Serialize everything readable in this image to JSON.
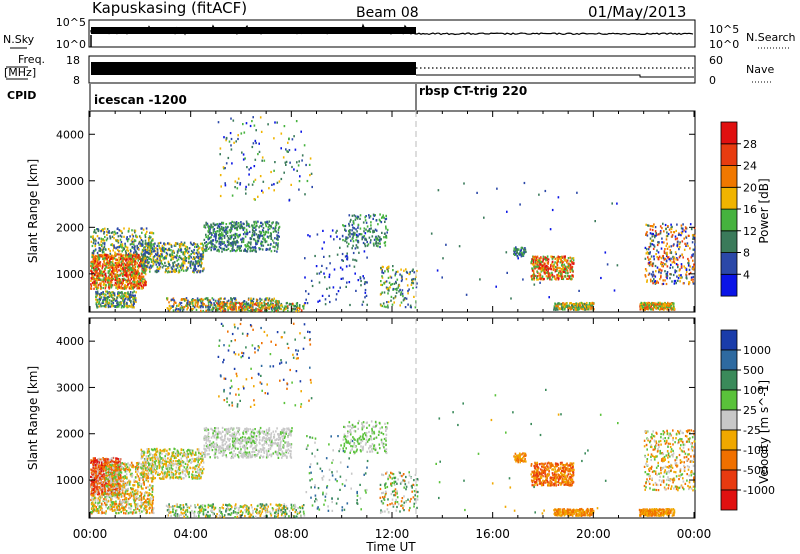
{
  "header": {
    "station": "Kapuskasing (fitACF)",
    "beam": "Beam 08",
    "date": "01/May/2013"
  },
  "noise_panel": {
    "left_label": "N.Sky",
    "left_ticks": [
      "10^5",
      "10^0"
    ],
    "right_ticks": [
      "10^5",
      "10^0"
    ],
    "right_label": "N.Search"
  },
  "freq_panel": {
    "left_label_1": "Freq.",
    "left_label_2": "[MHz]",
    "left_ticks": [
      "18",
      "8"
    ],
    "right_ticks": [
      "60",
      "0"
    ],
    "right_label": "Nave"
  },
  "cpid_panel": {
    "label": "CPID",
    "segments": [
      "icescan -1200",
      "rbsp CT-trig 220"
    ]
  },
  "chart_data": [
    {
      "type": "heatmap",
      "title": "",
      "xlabel": "Time UT",
      "ylabel": "Slant Range [km]",
      "x_ticks": [
        "00:00",
        "04:00",
        "08:00",
        "12:00",
        "16:00",
        "20:00",
        "00:00"
      ],
      "y_ticks": [
        "1000",
        "2000",
        "3000",
        "4000"
      ],
      "xlim_hours": [
        0,
        24
      ],
      "ylim_km": [
        180,
        4500
      ],
      "colorbar": {
        "label": "Power [dB]",
        "ticks": [
          "4",
          "8",
          "12",
          "16",
          "20",
          "24",
          "28"
        ],
        "colors": [
          "#0a14e6",
          "#2b48a8",
          "#3a7a5a",
          "#46b23e",
          "#f0b400",
          "#f07800",
          "#e83c10",
          "#e01010"
        ]
      }
    },
    {
      "type": "heatmap",
      "title": "",
      "xlabel": "Time UT",
      "ylabel": "Slant Range [km]",
      "x_ticks": [
        "00:00",
        "04:00",
        "08:00",
        "12:00",
        "16:00",
        "20:00",
        "00:00"
      ],
      "y_ticks": [
        "1000",
        "2000",
        "3000",
        "4000"
      ],
      "xlim_hours": [
        0,
        24
      ],
      "ylim_km": [
        180,
        4500
      ],
      "colorbar": {
        "label": "Velocity [m s^-1]",
        "ticks": [
          "1000",
          "500",
          "100",
          "25",
          "-25",
          "-100",
          "-500",
          "-1000"
        ],
        "colors": [
          "#1a3caa",
          "#2e6aa0",
          "#3a8a5a",
          "#5ac23a",
          "#c8c8c8",
          "#f0a800",
          "#f07000",
          "#e83a10",
          "#e01010"
        ]
      }
    }
  ],
  "time_axis": {
    "label": "Time UT",
    "ticks": [
      "00:00",
      "04:00",
      "08:00",
      "12:00",
      "16:00",
      "20:00",
      "00:00"
    ]
  }
}
